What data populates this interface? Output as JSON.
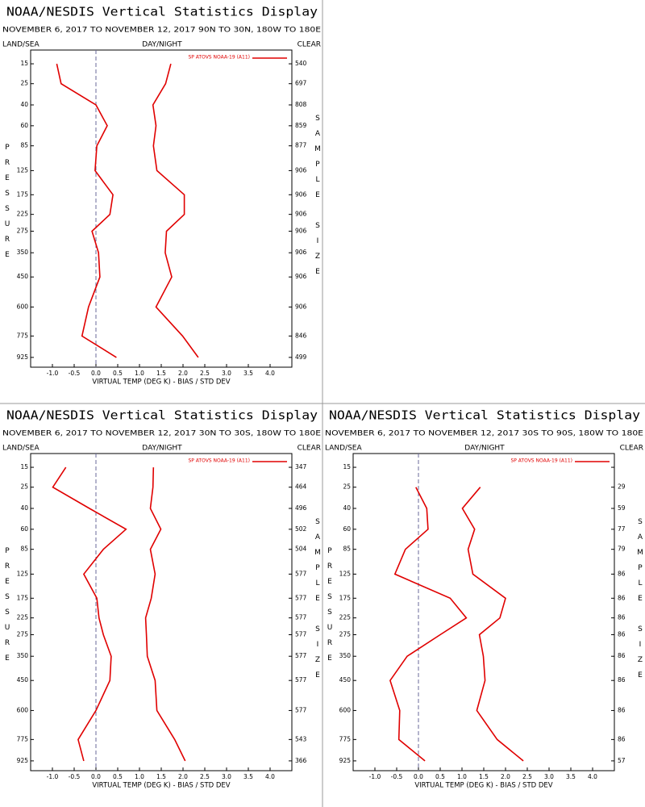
{
  "chart_data": [
    {
      "type": "line",
      "title": "NOAA/NESDIS Vertical Statistics Display",
      "subtitle": "NOVEMBER 6, 2017 TO NOVEMBER 12, 2017 90N TO 30N, 180W TO 180E",
      "left_header": "LAND/SEA",
      "center_header": "DAY/NIGHT",
      "right_header": "CLEAR",
      "y_label": "PRESSURE",
      "y2_label": "SAMPLE SIZE",
      "x_label": "VIRTUAL TEMP (DEG K) - BIAS / STD DEV",
      "y": [
        15,
        25,
        40,
        60,
        85,
        125,
        175,
        225,
        275,
        350,
        450,
        600,
        775,
        925
      ],
      "sample_size": [
        540,
        697,
        808,
        859,
        877,
        906,
        906,
        906,
        906,
        906,
        906,
        906,
        846,
        499
      ],
      "series": [
        {
          "name": "SP ATOVS NOAA-19 (A11)",
          "color": "#e00000",
          "values": [
            -0.9,
            -0.8,
            0.0,
            0.26,
            0.02,
            -0.02,
            0.39,
            0.32,
            -0.09,
            0.06,
            0.09,
            -0.17,
            -0.32,
            0.47
          ]
        },
        {
          "color": "#e00000",
          "values": [
            1.72,
            1.6,
            1.31,
            1.38,
            1.32,
            1.4,
            2.03,
            2.03,
            1.62,
            1.59,
            1.74,
            1.38,
            1.99,
            2.35
          ]
        }
      ],
      "xlim": [
        -1.5,
        4.5
      ],
      "xticks": [
        {
          "value": -1,
          "label": "-1.0"
        },
        -0.5,
        {
          "value": 0,
          "label": "0.0"
        },
        0.5,
        {
          "value": 1,
          "label": "1.0"
        },
        1.5,
        {
          "value": 2,
          "label": "2.0"
        },
        2.5,
        {
          "value": 3,
          "label": "3.0"
        },
        3.5,
        {
          "value": 4,
          "label": "4.0"
        }
      ],
      "ylim": [
        10,
        1000
      ],
      "y_power": 0.3,
      "y_inverted": true,
      "yticks": [
        15,
        25,
        40,
        60,
        85,
        125,
        175,
        225,
        275,
        350,
        450,
        600,
        775,
        925
      ],
      "reference_x": 0,
      "legend": "upper right"
    },
    {
      "type": "line",
      "title": "NOAA/NESDIS Vertical Statistics Display",
      "subtitle": "NOVEMBER 6, 2017 TO NOVEMBER 12, 2017 30N TO 30S, 180W TO 180E",
      "left_header": "LAND/SEA",
      "center_header": "DAY/NIGHT",
      "right_header": "CLEAR",
      "y_label": "PRESSURE",
      "y2_label": "SAMPLE SIZE",
      "x_label": "VIRTUAL TEMP (DEG K) - BIAS / STD DEV",
      "y": [
        15,
        25,
        40,
        60,
        85,
        125,
        175,
        225,
        275,
        350,
        450,
        600,
        775,
        925
      ],
      "sample_size": [
        347,
        464,
        496,
        502,
        504,
        577,
        577,
        577,
        577,
        577,
        577,
        577,
        543,
        366
      ],
      "series": [
        {
          "name": "SP ATOVS NOAA-19 (A11)",
          "color": "#e00000",
          "values": [
            -0.69,
            -0.99,
            -0.15,
            0.69,
            0.17,
            -0.28,
            0.02,
            0.07,
            0.17,
            0.35,
            0.32,
            0.0,
            -0.41,
            -0.28
          ]
        },
        {
          "color": "#e00000",
          "values": [
            1.32,
            1.31,
            1.25,
            1.49,
            1.25,
            1.36,
            1.27,
            1.14,
            1.16,
            1.18,
            1.36,
            1.4,
            1.81,
            2.05
          ]
        }
      ],
      "xlim": [
        -1.5,
        4.5
      ],
      "xticks": [
        {
          "value": -1,
          "label": "-1.0"
        },
        -0.5,
        {
          "value": 0,
          "label": "0.0"
        },
        0.5,
        {
          "value": 1,
          "label": "1.0"
        },
        1.5,
        {
          "value": 2,
          "label": "2.0"
        },
        2.5,
        {
          "value": 3,
          "label": "3.0"
        },
        3.5,
        {
          "value": 4,
          "label": "4.0"
        }
      ],
      "ylim": [
        10,
        1000
      ],
      "y_power": 0.3,
      "y_inverted": true,
      "yticks": [
        15,
        25,
        40,
        60,
        85,
        125,
        175,
        225,
        275,
        350,
        450,
        600,
        775,
        925
      ],
      "reference_x": 0,
      "legend": "upper right"
    },
    {
      "type": "line",
      "title": "NOAA/NESDIS Vertical Statistics Display",
      "subtitle": "NOVEMBER 6, 2017 TO NOVEMBER 12, 2017 30S TO 90S, 180W TO 180E",
      "left_header": "LAND/SEA",
      "center_header": "DAY/NIGHT",
      "right_header": "CLEAR",
      "y_label": "PRESSURE",
      "y2_label": "SAMPLE SIZE",
      "x_label": "VIRTUAL TEMP (DEG K) - BIAS / STD DEV",
      "y": [
        15,
        25,
        40,
        60,
        85,
        125,
        175,
        225,
        275,
        350,
        450,
        600,
        775,
        925
      ],
      "sample_size": [
        null,
        29,
        59,
        77,
        79,
        86,
        86,
        86,
        86,
        86,
        86,
        86,
        86,
        57
      ],
      "series": [
        {
          "name": "SP ATOVS NOAA-19 (A11)",
          "color": "#e00000",
          "values": [
            null,
            -0.06,
            0.19,
            0.22,
            -0.3,
            -0.54,
            0.73,
            1.1,
            0.5,
            -0.26,
            -0.65,
            -0.43,
            -0.45,
            0.15
          ]
        },
        {
          "color": "#e00000",
          "values": [
            null,
            1.42,
            1.01,
            1.29,
            1.14,
            1.25,
            2.0,
            1.87,
            1.4,
            1.49,
            1.53,
            1.34,
            1.81,
            2.41
          ]
        }
      ],
      "xlim": [
        -1.5,
        4.5
      ],
      "xticks": [
        {
          "value": -1,
          "label": "-1.0"
        },
        -0.5,
        {
          "value": 0,
          "label": "0.0"
        },
        0.5,
        {
          "value": 1,
          "label": "1.0"
        },
        1.5,
        {
          "value": 2,
          "label": "2.0"
        },
        2.5,
        {
          "value": 3,
          "label": "3.0"
        },
        3.5,
        {
          "value": 4,
          "label": "4.0"
        }
      ],
      "ylim": [
        10,
        1000
      ],
      "y_power": 0.3,
      "y_inverted": true,
      "yticks": [
        15,
        25,
        40,
        60,
        85,
        125,
        175,
        225,
        275,
        350,
        450,
        600,
        775,
        925
      ],
      "reference_x": 0,
      "legend": "upper right"
    }
  ]
}
